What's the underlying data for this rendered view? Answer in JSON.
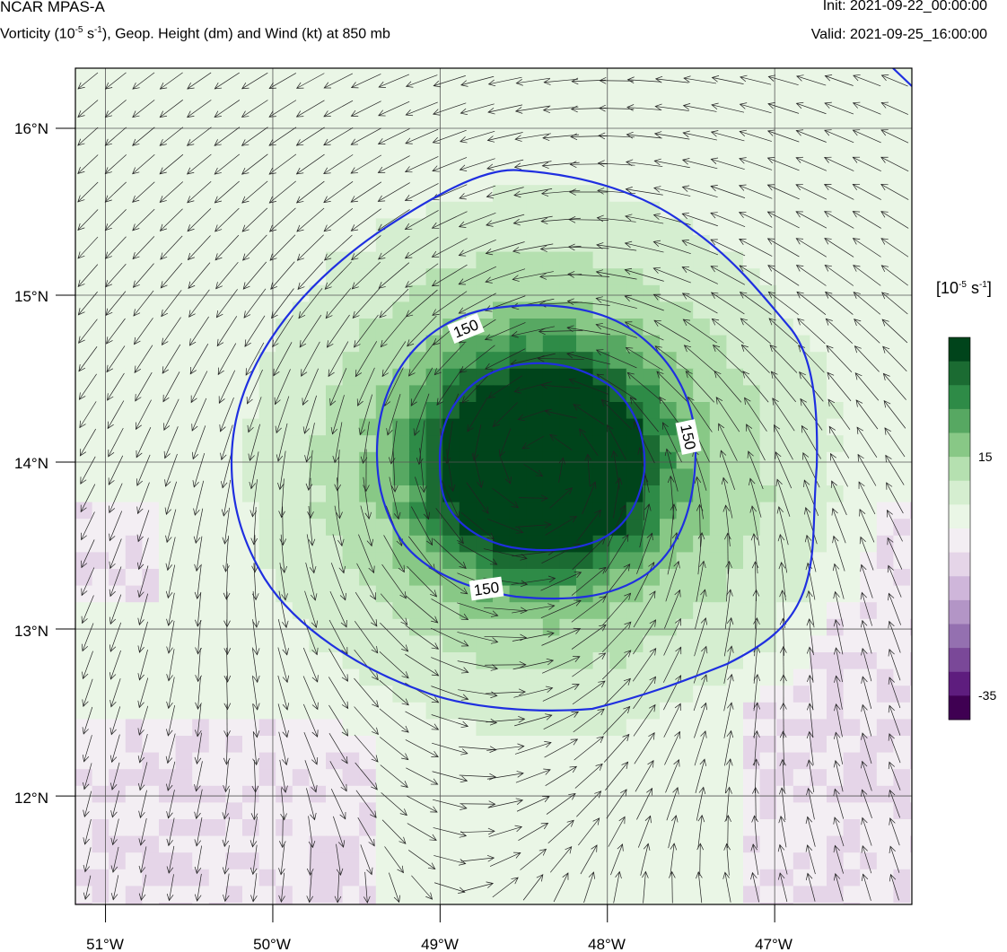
{
  "header": {
    "model": "NCAR MPAS-A",
    "field_pre": "Vorticity (10",
    "field_exp1": "-5",
    "field_mid": " s",
    "field_exp2": "-1",
    "field_post": "), Geop. Height (dm) and Wind (kt) at 850 mb",
    "init": "Init: 2021-09-22_00:00:00",
    "valid": "Valid: 2021-09-25_16:00:00"
  },
  "map": {
    "lon_labels": [
      "51°W",
      "50°W",
      "49°W",
      "48°W",
      "47°W"
    ],
    "lat_labels": [
      "16°N",
      "15°N",
      "14°N",
      "13°N",
      "12°N"
    ],
    "lon_values": [
      -51,
      -50,
      -49,
      -48,
      -47
    ],
    "lat_values": [
      16,
      15,
      14,
      13,
      12
    ],
    "lon_range": [
      -51.18,
      -46.18
    ],
    "lat_range": [
      11.35,
      16.36
    ],
    "vortex_center": {
      "lon": -48.4,
      "lat": 14.0
    },
    "contour_labels": [
      "150",
      "150",
      "150"
    ],
    "contour_color": "#1f2fe0"
  },
  "colorbar": {
    "units_pre": "[10",
    "units_exp1": "-5",
    "units_mid": " s",
    "units_exp2": "-1",
    "units_post": "]",
    "label_15": "15",
    "label_m35": "-35",
    "colors": [
      "#00441b",
      "#1b6b32",
      "#2e8b47",
      "#57a862",
      "#88c886",
      "#b5e0b0",
      "#d5eed0",
      "#eaf6e6",
      "#f3eef3",
      "#e5d5e8",
      "#cfb6da",
      "#b395c6",
      "#9470b0",
      "#7a4898",
      "#5e1d7e",
      "#3f0052"
    ]
  }
}
